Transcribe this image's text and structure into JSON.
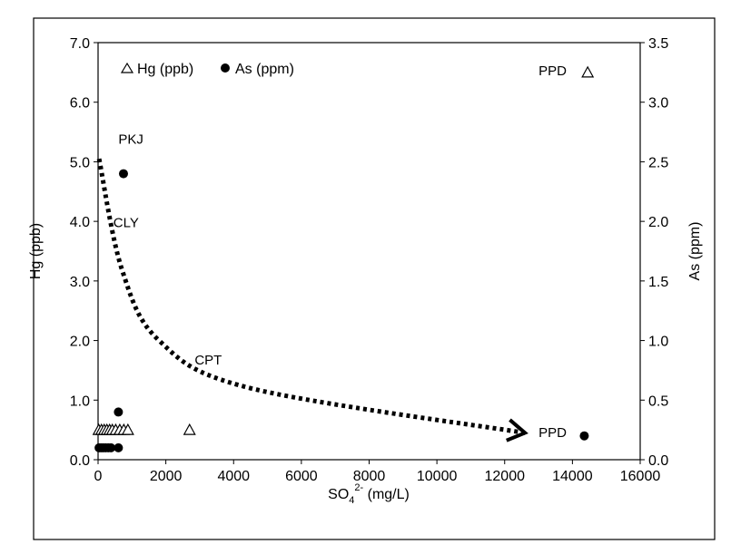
{
  "chart_data": {
    "type": "scatter",
    "title": "",
    "xlabel": {
      "main": "SO",
      "sub": "4",
      "sup": "2-",
      "unit": " (mg/L)"
    },
    "ylabel_left": "Hg (ppb)",
    "ylabel_right": "As (ppm)",
    "xlim": [
      0,
      16000
    ],
    "ylim_left": [
      0,
      7.0
    ],
    "ylim_right": [
      0,
      3.5
    ],
    "x_ticks": [
      "0",
      "2000",
      "4000",
      "6000",
      "8000",
      "10000",
      "12000",
      "14000",
      "16000"
    ],
    "y_left_ticks": [
      "0.0",
      "1.0",
      "2.0",
      "3.0",
      "4.0",
      "5.0",
      "6.0",
      "7.0"
    ],
    "y_right_ticks": [
      "0.0",
      "0.5",
      "1.0",
      "1.5",
      "2.0",
      "2.5",
      "3.0",
      "3.5"
    ],
    "grid": false,
    "legend_position": "top-left",
    "series": [
      {
        "name": "Hg (ppb)",
        "marker": "open-triangle",
        "axis": "left",
        "points": [
          {
            "x": 20,
            "y": 0.5
          },
          {
            "x": 100,
            "y": 0.5
          },
          {
            "x": 180,
            "y": 0.5
          },
          {
            "x": 260,
            "y": 0.5
          },
          {
            "x": 340,
            "y": 0.5
          },
          {
            "x": 420,
            "y": 0.5
          },
          {
            "x": 520,
            "y": 0.5
          },
          {
            "x": 640,
            "y": 0.5
          },
          {
            "x": 760,
            "y": 0.5
          },
          {
            "x": 880,
            "y": 0.5
          },
          {
            "x": 2700,
            "y": 0.5
          },
          {
            "x": 14450,
            "y": 6.5
          }
        ]
      },
      {
        "name": "As (ppm)",
        "marker": "filled-circle",
        "axis": "right",
        "points": [
          {
            "x": 30,
            "y": 0.1
          },
          {
            "x": 90,
            "y": 0.1
          },
          {
            "x": 150,
            "y": 0.1
          },
          {
            "x": 220,
            "y": 0.1
          },
          {
            "x": 300,
            "y": 0.1
          },
          {
            "x": 380,
            "y": 0.1
          },
          {
            "x": 600,
            "y": 0.1
          },
          {
            "x": 600,
            "y": 0.4
          },
          {
            "x": 750,
            "y": 2.4
          },
          {
            "x": 14350,
            "y": 0.2
          }
        ]
      }
    ],
    "annotations": [
      {
        "text": "PKJ",
        "x": 600,
        "y_left": 5.3
      },
      {
        "text": "CLY",
        "x": 450,
        "y_left": 3.9
      },
      {
        "text": "CPT",
        "x": 2850,
        "y_left": 1.6
      },
      {
        "text": "PPD",
        "x": 13000,
        "y_left": 0.38
      },
      {
        "text": "PPD",
        "x": 13000,
        "y_left": 6.45
      }
    ],
    "trend_arrow": {
      "style": "dotted",
      "points": [
        {
          "x": 30,
          "y_left": 5.05
        },
        {
          "x": 700,
          "y_left": 3.2
        },
        {
          "x": 1800,
          "y_left": 2.0
        },
        {
          "x": 4500,
          "y_left": 1.2
        },
        {
          "x": 12600,
          "y_left": 0.45
        }
      ]
    }
  }
}
